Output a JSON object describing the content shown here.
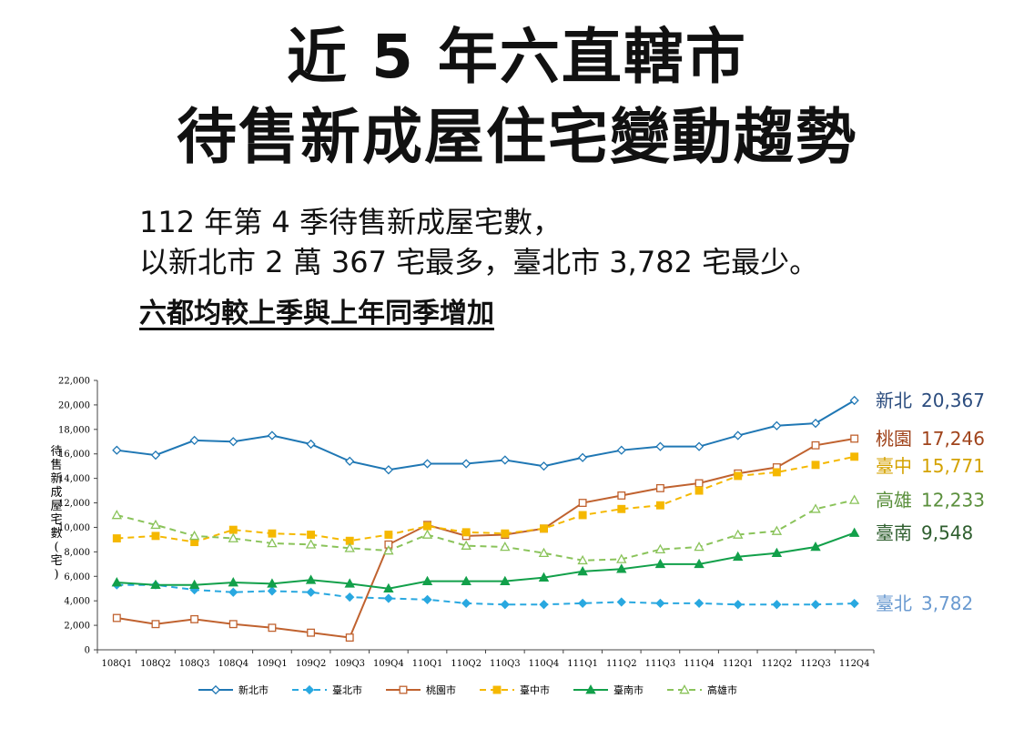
{
  "header": {
    "title_line1": "近 5 年六直轄市",
    "title_line2": "待售新成屋住宅變動趨勢"
  },
  "summary": {
    "line1": "112 年第 4 季待售新成屋宅數，",
    "line2": "以新北市 2 萬 367 宅最多，臺北市 3,782 宅最少。",
    "highlight": "六都均較上季與上年同季增加"
  },
  "chart_data": {
    "type": "line",
    "ylabel": "待售新成屋宅數(宅)",
    "ylim": [
      0,
      22000
    ],
    "yticks": [
      "0",
      "2,000",
      "4,000",
      "6,000",
      "8,000",
      "10,000",
      "12,000",
      "14,000",
      "16,000",
      "18,000",
      "20,000",
      "22,000"
    ],
    "categories": [
      "108Q1",
      "108Q2",
      "108Q3",
      "108Q4",
      "109Q1",
      "109Q2",
      "109Q3",
      "109Q4",
      "110Q1",
      "110Q2",
      "110Q3",
      "110Q4",
      "111Q1",
      "111Q2",
      "111Q3",
      "111Q4",
      "112Q1",
      "112Q2",
      "112Q3",
      "112Q4"
    ],
    "grid": false,
    "legend_position": "bottom",
    "series": [
      {
        "name": "新北市",
        "color": "#1f77b4",
        "dash": "solid",
        "marker": "diamond-open",
        "values": [
          16300,
          15900,
          17100,
          17000,
          17500,
          16800,
          15400,
          14700,
          15200,
          15200,
          15500,
          15000,
          15700,
          16300,
          16600,
          16600,
          17500,
          18300,
          18500,
          20367
        ],
        "end_label": "新北",
        "end_value": "20,367",
        "end_color": "#2b4c7e"
      },
      {
        "name": "臺北市",
        "color": "#29a8e0",
        "dash": "dashed",
        "marker": "diamond-filled",
        "values": [
          5300,
          5300,
          4900,
          4700,
          4800,
          4700,
          4300,
          4200,
          4100,
          3800,
          3700,
          3700,
          3800,
          3900,
          3800,
          3800,
          3700,
          3700,
          3700,
          3782
        ],
        "end_label": "臺北",
        "end_value": "3,782",
        "end_color": "#6a9ad0"
      },
      {
        "name": "桃園市",
        "color": "#c0622f",
        "dash": "solid",
        "marker": "square-open",
        "values": [
          2600,
          2100,
          2500,
          2100,
          1800,
          1400,
          1000,
          8600,
          10200,
          9300,
          9400,
          9900,
          12000,
          12600,
          13200,
          13600,
          14400,
          14900,
          16700,
          17246
        ],
        "end_label": "桃園",
        "end_value": "17,246",
        "end_color": "#a0441c"
      },
      {
        "name": "臺中市",
        "color": "#f5b800",
        "dash": "dashed",
        "marker": "square-filled",
        "values": [
          9100,
          9300,
          8800,
          9800,
          9500,
          9400,
          8900,
          9400,
          10100,
          9600,
          9500,
          9900,
          11000,
          11500,
          11800,
          13000,
          14200,
          14500,
          15100,
          15771
        ],
        "end_label": "臺中",
        "end_value": "15,771",
        "end_color": "#d4a200"
      },
      {
        "name": "臺南市",
        "color": "#12a04a",
        "dash": "solid",
        "marker": "triangle-filled",
        "values": [
          5500,
          5300,
          5300,
          5500,
          5400,
          5700,
          5400,
          5000,
          5600,
          5600,
          5600,
          5900,
          6400,
          6600,
          7000,
          7000,
          7600,
          7900,
          8400,
          9548
        ],
        "end_label": "臺南",
        "end_value": "9,548",
        "end_color": "#2e5e2e"
      },
      {
        "name": "高雄市",
        "color": "#8ac35a",
        "dash": "dashed",
        "marker": "triangle-open",
        "values": [
          11000,
          10200,
          9300,
          9100,
          8700,
          8600,
          8300,
          8100,
          9400,
          8500,
          8400,
          7900,
          7300,
          7400,
          8200,
          8400,
          9400,
          9700,
          11500,
          12233
        ],
        "end_label": "高雄",
        "end_value": "12,233",
        "end_color": "#5a8f3c"
      }
    ]
  }
}
